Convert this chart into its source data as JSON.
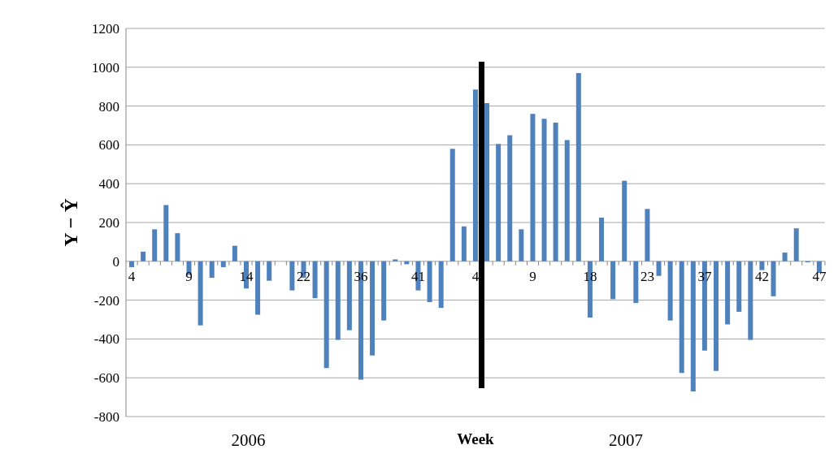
{
  "chart_data": {
    "type": "bar",
    "xlabel": "Week",
    "ylabel": "Y − Ŷ",
    "categories": [
      "4",
      null,
      null,
      null,
      null,
      "9",
      null,
      null,
      null,
      null,
      "14",
      null,
      null,
      null,
      null,
      "22",
      null,
      null,
      null,
      null,
      "36",
      null,
      null,
      null,
      null,
      "41",
      null,
      null,
      null,
      null,
      "4",
      null,
      null,
      null,
      null,
      "9",
      null,
      null,
      null,
      null,
      "18",
      null,
      null,
      null,
      null,
      "23",
      null,
      null,
      null,
      null,
      "37",
      null,
      null,
      null,
      null,
      "42",
      null,
      null,
      null,
      null,
      "47"
    ],
    "values": [
      -30,
      50,
      165,
      290,
      145,
      -70,
      -330,
      -85,
      -30,
      80,
      -140,
      -275,
      -100,
      0,
      -150,
      -85,
      -190,
      -550,
      -405,
      -355,
      -610,
      -485,
      -305,
      10,
      -15,
      -150,
      -210,
      -240,
      580,
      180,
      885,
      815,
      605,
      650,
      165,
      760,
      735,
      715,
      625,
      970,
      -290,
      225,
      -195,
      415,
      -215,
      270,
      -75,
      -305,
      -575,
      -670,
      -460,
      -565,
      -325,
      -260,
      -405,
      -45,
      -180,
      45,
      170,
      -5,
      -60
    ],
    "color": "#4f81bd",
    "ylim": [
      -800,
      1200
    ],
    "yticks": [
      -800,
      -600,
      -400,
      -200,
      0,
      200,
      400,
      600,
      800,
      1000,
      1200
    ],
    "grid": "y",
    "annotations": [
      "2006",
      "2007"
    ]
  }
}
